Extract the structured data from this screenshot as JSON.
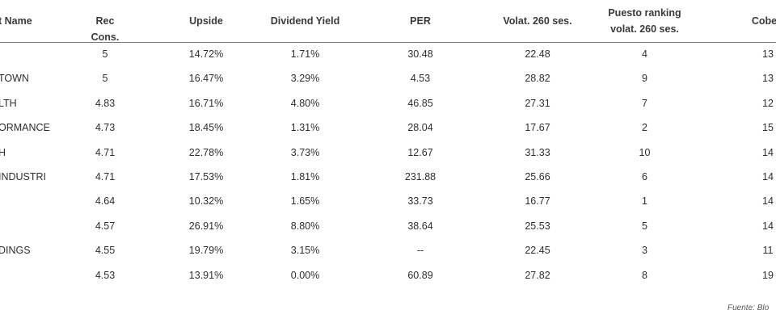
{
  "table": {
    "headers": {
      "name": "t Name",
      "rec": "Rec Cons.",
      "upside": "Upside",
      "dividend": "Dividend Yield",
      "per": "PER",
      "vol": "Volat. 260 ses.",
      "rank_line1": "Puesto ranking",
      "rank_line2": "volat. 260 ses.",
      "coverage": "Cobert"
    },
    "rows": [
      {
        "name": "",
        "rec": "5",
        "upside": "14.72%",
        "dividend": "1.71%",
        "per": "30.48",
        "vol": "22.48",
        "rank": "4",
        "coverage": "13"
      },
      {
        "name": "TOWN",
        "rec": "5",
        "upside": "16.47%",
        "dividend": "3.29%",
        "per": "4.53",
        "vol": "28.82",
        "rank": "9",
        "coverage": "13"
      },
      {
        "name": "LTH",
        "rec": "4.83",
        "upside": "16.71%",
        "dividend": "4.80%",
        "per": "46.85",
        "vol": "27.31",
        "rank": "7",
        "coverage": "12"
      },
      {
        "name": "ORMANCE",
        "rec": "4.73",
        "upside": "18.45%",
        "dividend": "1.31%",
        "per": "28.04",
        "vol": "17.67",
        "rank": "2",
        "coverage": "15"
      },
      {
        "name": "H",
        "rec": "4.71",
        "upside": "22.78%",
        "dividend": "3.73%",
        "per": "12.67",
        "vol": "31.33",
        "rank": "10",
        "coverage": "14"
      },
      {
        "name": "INDUSTRI",
        "rec": "4.71",
        "upside": "17.53%",
        "dividend": "1.81%",
        "per": "231.88",
        "vol": "25.66",
        "rank": "6",
        "coverage": "14"
      },
      {
        "name": "",
        "rec": "4.64",
        "upside": "10.32%",
        "dividend": "1.65%",
        "per": "33.73",
        "vol": "16.77",
        "rank": "1",
        "coverage": "14"
      },
      {
        "name": "",
        "rec": "4.57",
        "upside": "26.91%",
        "dividend": "8.80%",
        "per": "38.64",
        "vol": "25.53",
        "rank": "5",
        "coverage": "14"
      },
      {
        "name": "DINGS",
        "rec": "4.55",
        "upside": "19.79%",
        "dividend": "3.15%",
        "per": "--",
        "vol": "22.45",
        "rank": "3",
        "coverage": "11"
      },
      {
        "name": "",
        "rec": "4.53",
        "upside": "13.91%",
        "dividend": "0.00%",
        "per": "60.89",
        "vol": "27.82",
        "rank": "8",
        "coverage": "19"
      }
    ]
  },
  "source": "Fuente: Blo"
}
